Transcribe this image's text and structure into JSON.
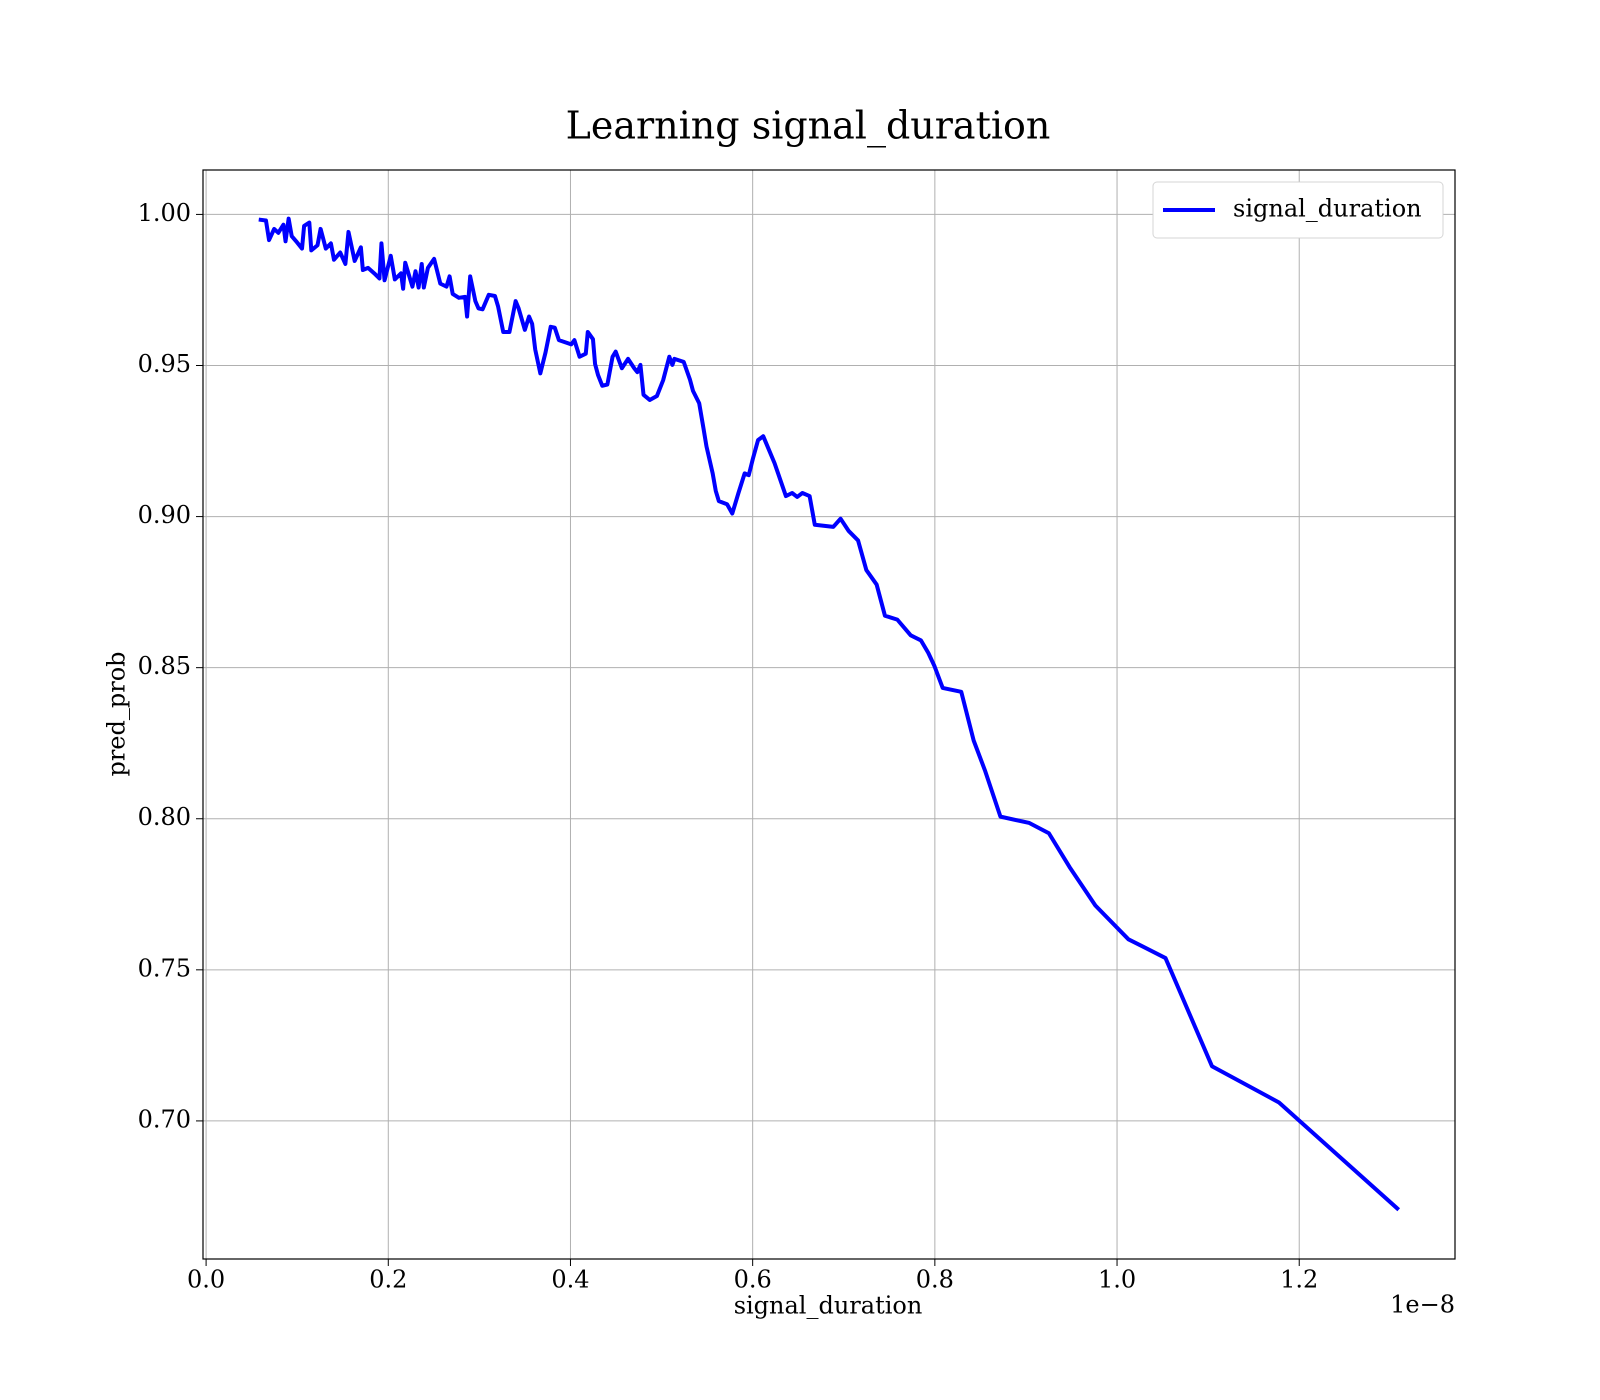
{
  "chart_data": {
    "type": "line",
    "title": "Learning signal_duration",
    "x_label": "signal_duration",
    "y_label": "pred_prob",
    "x_offset_label": "1e−8",
    "x": [
      0.0578,
      0.0657,
      0.0691,
      0.0747,
      0.0793,
      0.0849,
      0.0872,
      0.0906,
      0.094,
      0.0997,
      0.1053,
      0.1076,
      0.1133,
      0.1155,
      0.1223,
      0.1257,
      0.1314,
      0.137,
      0.1404,
      0.1472,
      0.1529,
      0.1563,
      0.1631,
      0.1699,
      0.1721,
      0.1778,
      0.1846,
      0.1903,
      0.1925,
      0.1959,
      0.2027,
      0.2072,
      0.214,
      0.2163,
      0.2186,
      0.2265,
      0.2299,
      0.2333,
      0.2367,
      0.239,
      0.2435,
      0.2503,
      0.2571,
      0.2639,
      0.2673,
      0.2707,
      0.2775,
      0.2843,
      0.2865,
      0.2899,
      0.2956,
      0.299,
      0.3035,
      0.3103,
      0.3171,
      0.3205,
      0.3262,
      0.333,
      0.3398,
      0.3431,
      0.3499,
      0.3545,
      0.3579,
      0.3613,
      0.3669,
      0.3726,
      0.3783,
      0.3828,
      0.3873,
      0.3941,
      0.4009,
      0.4043,
      0.41,
      0.4168,
      0.419,
      0.4247,
      0.427,
      0.4303,
      0.4349,
      0.4405,
      0.4462,
      0.4496,
      0.4564,
      0.4632,
      0.47,
      0.4734,
      0.4768,
      0.4802,
      0.487,
      0.4949,
      0.5017,
      0.5085,
      0.5119,
      0.5141,
      0.5243,
      0.5311,
      0.5345,
      0.5413,
      0.5459,
      0.5493,
      0.5561,
      0.5595,
      0.5629,
      0.5719,
      0.5776,
      0.5844,
      0.5912,
      0.5957,
      0.6002,
      0.6059,
      0.6116,
      0.624,
      0.6365,
      0.6433,
      0.6489,
      0.6546,
      0.6625,
      0.6682,
      0.6886,
      0.6965,
      0.7055,
      0.7157,
      0.7248,
      0.7361,
      0.7452,
      0.7588,
      0.7735,
      0.7848,
      0.7928,
      0.7996,
      0.8086,
      0.829,
      0.8426,
      0.855,
      0.872,
      0.9037,
      0.9252,
      0.9479,
      0.9762,
      1.0125,
      1.0532,
      1.1042,
      1.1778,
      1.3092
    ],
    "series": [
      {
        "name": "signal_duration",
        "color": "#0000ff",
        "values": [
          0.9983,
          0.998,
          0.9915,
          0.9952,
          0.9939,
          0.9966,
          0.9911,
          0.9986,
          0.9928,
          0.9908,
          0.9887,
          0.9962,
          0.9973,
          0.9881,
          0.9898,
          0.9952,
          0.9887,
          0.9904,
          0.985,
          0.9874,
          0.9836,
          0.9942,
          0.9846,
          0.9891,
          0.9816,
          0.9823,
          0.9805,
          0.9788,
          0.9904,
          0.9782,
          0.9863,
          0.9785,
          0.9805,
          0.9754,
          0.984,
          0.9761,
          0.9812,
          0.9758,
          0.9836,
          0.9758,
          0.9823,
          0.9853,
          0.9771,
          0.9761,
          0.9795,
          0.9737,
          0.9724,
          0.9727,
          0.9662,
          0.9795,
          0.9713,
          0.9689,
          0.9686,
          0.9734,
          0.973,
          0.9696,
          0.9611,
          0.9611,
          0.9713,
          0.9689,
          0.9618,
          0.9662,
          0.9638,
          0.9553,
          0.9474,
          0.9543,
          0.9628,
          0.9625,
          0.9584,
          0.9577,
          0.957,
          0.9584,
          0.9529,
          0.9539,
          0.9611,
          0.9587,
          0.9505,
          0.9468,
          0.9433,
          0.9437,
          0.9529,
          0.9546,
          0.9491,
          0.9522,
          0.9491,
          0.9478,
          0.9502,
          0.9403,
          0.9386,
          0.9399,
          0.9451,
          0.9529,
          0.9502,
          0.9522,
          0.9512,
          0.9454,
          0.9416,
          0.9375,
          0.9294,
          0.9232,
          0.9143,
          0.9085,
          0.9051,
          0.9041,
          0.901,
          0.9078,
          0.9143,
          0.9137,
          0.9191,
          0.9253,
          0.9266,
          0.9177,
          0.9068,
          0.9078,
          0.9065,
          0.9078,
          0.9068,
          0.8973,
          0.8966,
          0.8993,
          0.8952,
          0.8921,
          0.8823,
          0.8775,
          0.8672,
          0.8659,
          0.8607,
          0.859,
          0.8549,
          0.8505,
          0.8433,
          0.842,
          0.8259,
          0.816,
          0.8007,
          0.7986,
          0.7952,
          0.784,
          0.7713,
          0.7601,
          0.7539,
          0.7181,
          0.7061,
          0.6706
        ]
      }
    ],
    "xlim": [
      -0.0034,
      1.371
    ],
    "ylim": [
      0.6543,
      1.0147
    ],
    "xticks": [
      {
        "value": 0,
        "label": "0.0"
      },
      0.2,
      0.4,
      0.6,
      0.8,
      {
        "value": 1,
        "label": "1.0"
      },
      1.2
    ],
    "yticks": [
      {
        "value": 0.7,
        "label": "0.70"
      },
      0.75,
      {
        "value": 0.8,
        "label": "0.80"
      },
      0.85,
      {
        "value": 0.9,
        "label": "0.90"
      },
      0.95,
      {
        "value": 1,
        "label": "1.00"
      }
    ],
    "grid": true,
    "legend": "upper right"
  }
}
